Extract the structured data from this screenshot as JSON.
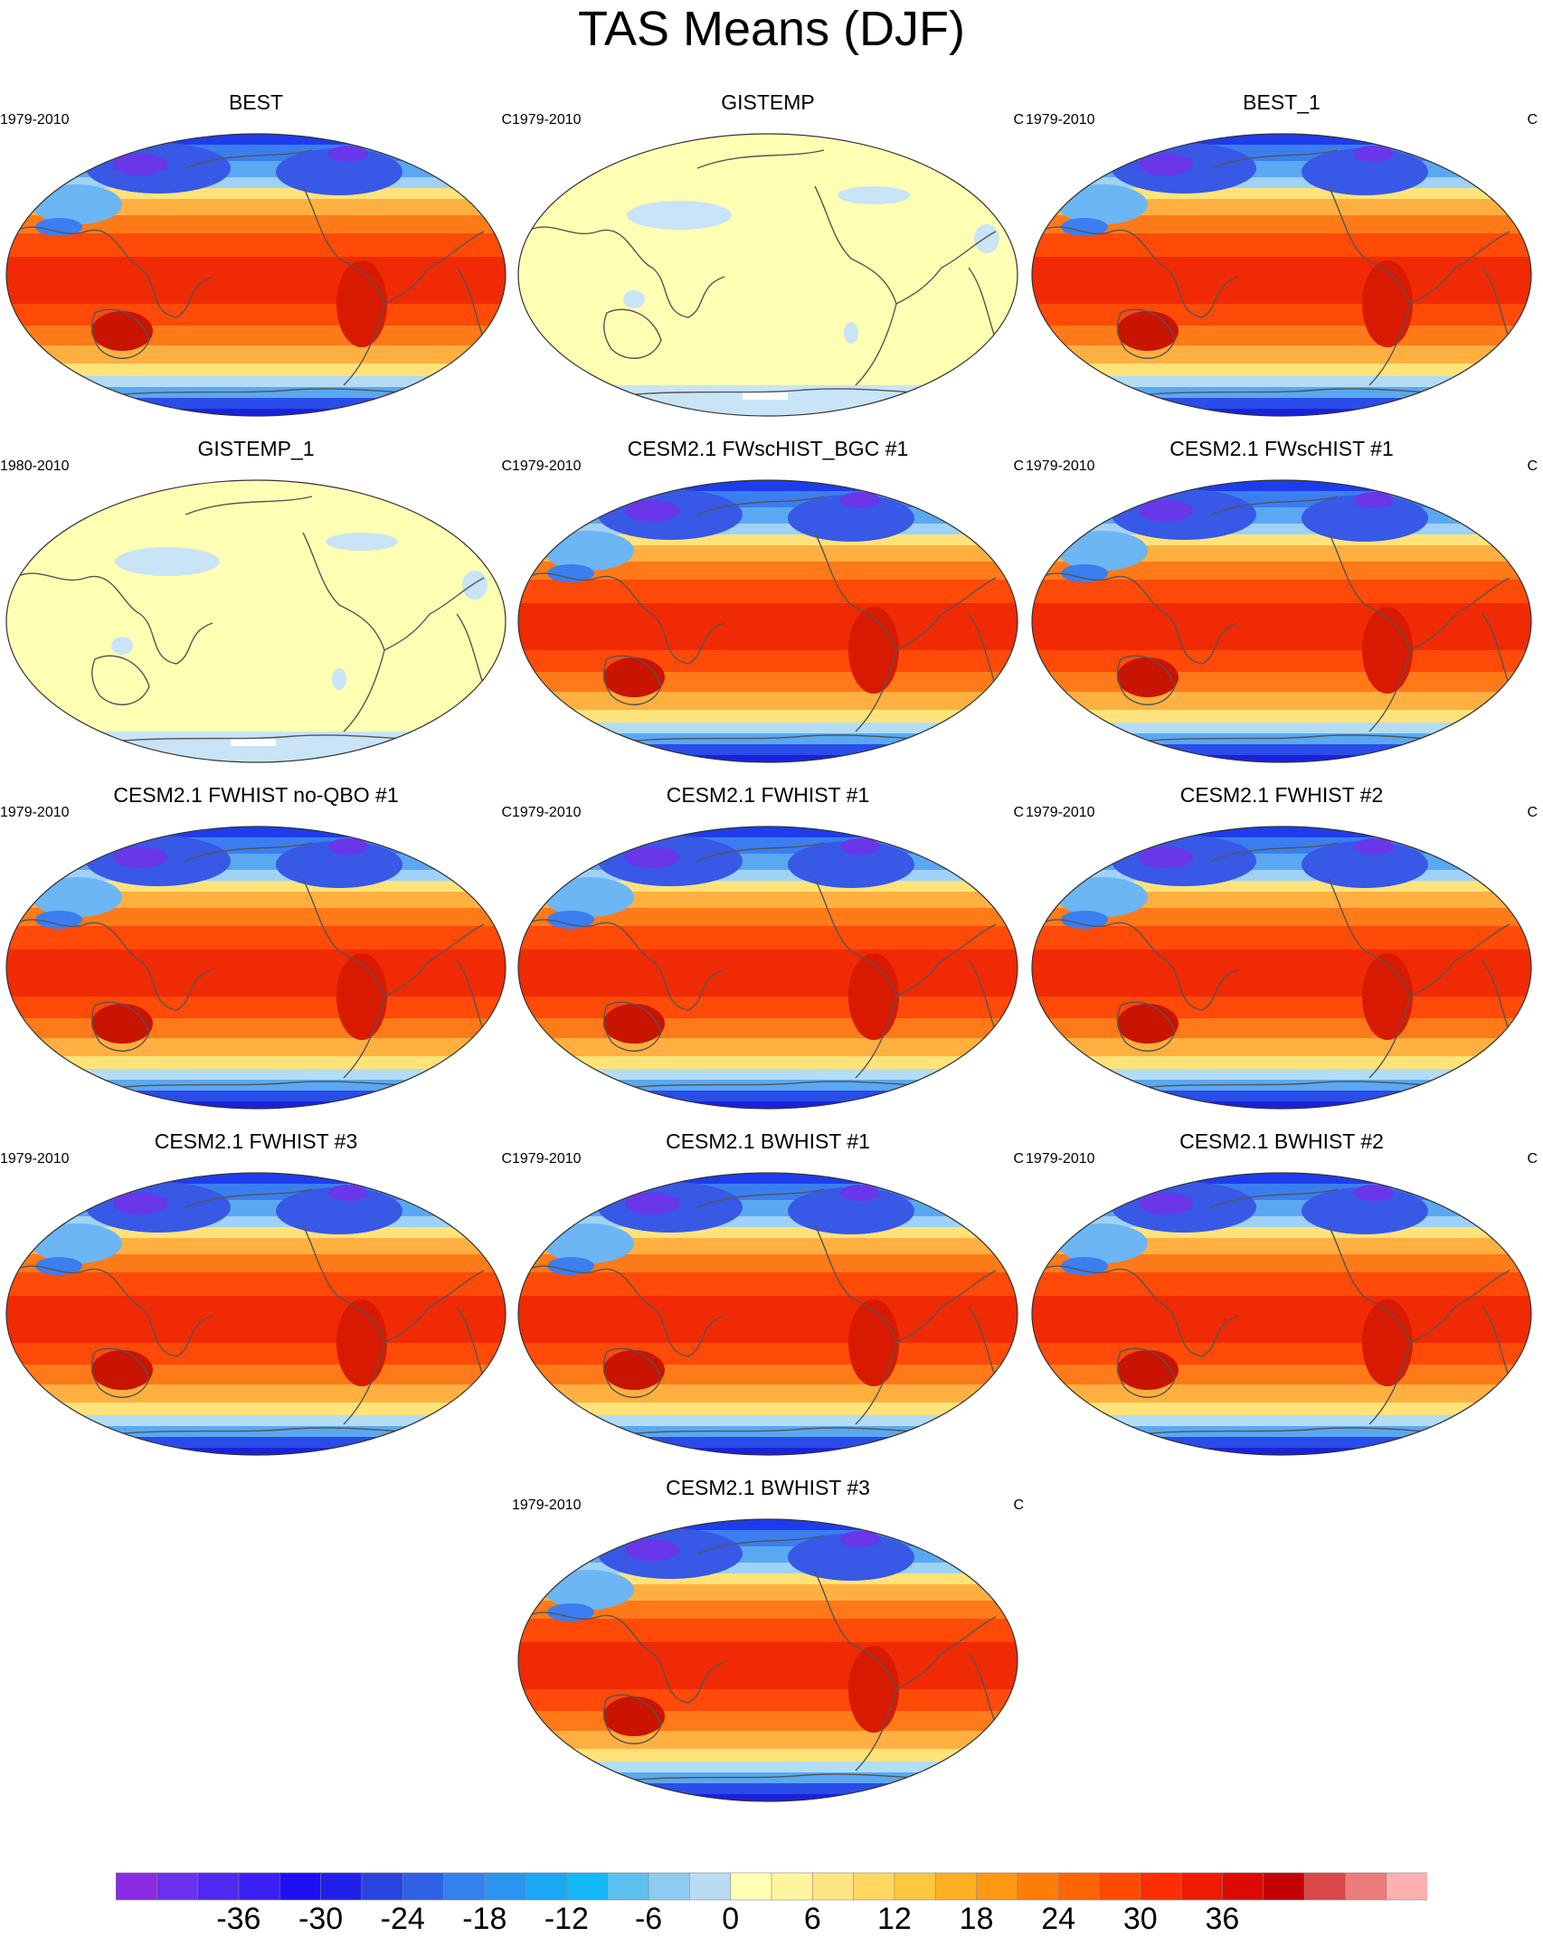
{
  "figure": {
    "title": "TAS Means (DJF)"
  },
  "panels": [
    {
      "title": "BEST",
      "years": "1979-2010",
      "units": "C",
      "style": "model"
    },
    {
      "title": "GISTEMP",
      "years": "1979-2010",
      "units": "C",
      "style": "anomaly"
    },
    {
      "title": "BEST_1",
      "years": "1979-2010",
      "units": "C",
      "style": "model"
    },
    {
      "title": "GISTEMP_1",
      "years": "1980-2010",
      "units": "C",
      "style": "anomaly"
    },
    {
      "title": "CESM2.1 FWscHIST_BGC #1",
      "years": "1979-2010",
      "units": "C",
      "style": "model"
    },
    {
      "title": "CESM2.1 FWscHIST #1",
      "years": "1979-2010",
      "units": "C",
      "style": "model"
    },
    {
      "title": "CESM2.1 FWHIST no-QBO #1",
      "years": "1979-2010",
      "units": "C",
      "style": "model"
    },
    {
      "title": "CESM2.1 FWHIST #1",
      "years": "1979-2010",
      "units": "C",
      "style": "model"
    },
    {
      "title": "CESM2.1 FWHIST #2",
      "years": "1979-2010",
      "units": "C",
      "style": "model"
    },
    {
      "title": "CESM2.1 FWHIST #3",
      "years": "1979-2010",
      "units": "C",
      "style": "model"
    },
    {
      "title": "CESM2.1 BWHIST #1",
      "years": "1979-2010",
      "units": "C",
      "style": "model"
    },
    {
      "title": "CESM2.1 BWHIST #2",
      "years": "1979-2010",
      "units": "C",
      "style": "model"
    },
    {
      "title": "CESM2.1 BWHIST #3",
      "years": "1979-2010",
      "units": "C",
      "style": "model"
    }
  ],
  "colorbar": {
    "levels": [
      -42,
      -39,
      -36,
      -33,
      -30,
      -27,
      -24,
      -21,
      -18,
      -15,
      -12,
      -9,
      -6,
      -3,
      0,
      3,
      6,
      9,
      12,
      15,
      18,
      21,
      24,
      27,
      30,
      33,
      36,
      39,
      42
    ],
    "labels": [
      "-36",
      "-30",
      "-24",
      "-18",
      "-12",
      "-6",
      "0",
      "6",
      "12",
      "18",
      "24",
      "30",
      "36"
    ],
    "label_values": [
      -36,
      -30,
      -24,
      -18,
      -12,
      -6,
      0,
      6,
      12,
      18,
      24,
      30,
      36
    ],
    "colors": [
      "#8a2be2",
      "#6a30ee",
      "#5028f0",
      "#3a1ff5",
      "#1e0ff5",
      "#2020e8",
      "#2a44e0",
      "#2f62e4",
      "#3480ec",
      "#2a95f0",
      "#1aa8f5",
      "#12b8f8",
      "#5cc0f0",
      "#8ecbee",
      "#b9dcf3",
      "#ffffb3",
      "#fff5a0",
      "#ffe682",
      "#ffd760",
      "#ffc840",
      "#ffb022",
      "#ff9812",
      "#ff7e0a",
      "#ff6406",
      "#ff4a04",
      "#ff2e02",
      "#f01a00",
      "#dc0a00",
      "#c40000",
      "#d84848",
      "#ec7c7c",
      "#ffb0b0"
    ]
  }
}
